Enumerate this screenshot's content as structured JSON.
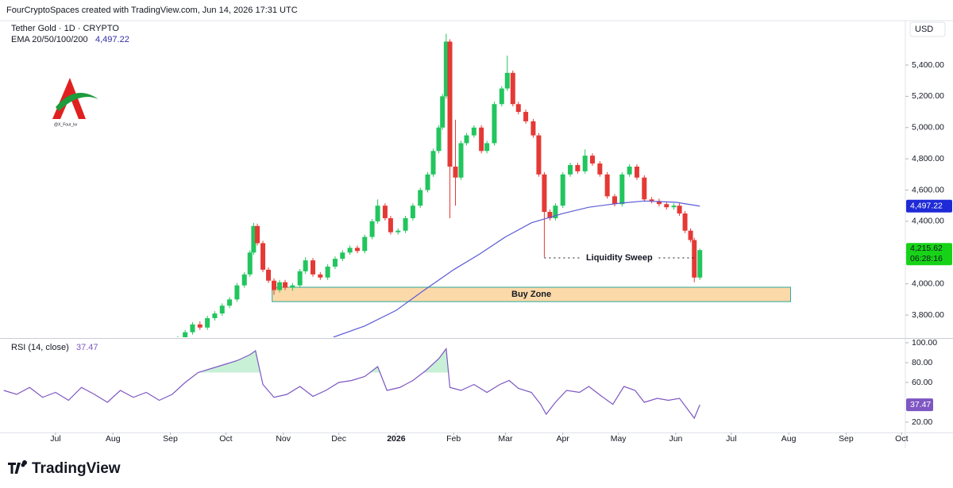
{
  "chart_data": {
    "type": "candlestick",
    "header": "FourCryptoSpaces created with TradingView.com, Jun 14, 2026 17:31 UTC",
    "title": "Tether Gold · 1D · CRYPTO",
    "currency": "USD",
    "brand": "TradingView",
    "logo_caption": "@X_Four_kv",
    "xlim": [
      "2025-06-01",
      "2026-10-03"
    ],
    "xticks": [
      {
        "value": "2025-07-01",
        "label": "Jul"
      },
      {
        "value": "2025-08-01",
        "label": "Aug"
      },
      {
        "value": "2025-09-01",
        "label": "Sep"
      },
      {
        "value": "2025-10-01",
        "label": "Oct"
      },
      {
        "value": "2025-11-01",
        "label": "Nov"
      },
      {
        "value": "2025-12-01",
        "label": "Dec"
      },
      {
        "value": "2026-01-01",
        "label": "2026"
      },
      {
        "value": "2026-02-01",
        "label": "Feb"
      },
      {
        "value": "2026-03-01",
        "label": "Mar"
      },
      {
        "value": "2026-04-01",
        "label": "Apr"
      },
      {
        "value": "2026-05-01",
        "label": "May"
      },
      {
        "value": "2026-06-01",
        "label": "Jun"
      },
      {
        "value": "2026-07-01",
        "label": "Jul"
      },
      {
        "value": "2026-08-01",
        "label": "Aug"
      },
      {
        "value": "2026-09-01",
        "label": "Sep"
      },
      {
        "value": "2026-10-01",
        "label": "Oct"
      }
    ],
    "ylim": [
      3658,
      5664
    ],
    "yticks": [
      {
        "value": 3800,
        "label": "3,800.00"
      },
      {
        "value": 4000,
        "label": "4,000.00"
      },
      {
        "value": 4200,
        "label": "4,200.00"
      },
      {
        "value": 4400,
        "label": "4,400.00"
      },
      {
        "value": 4600,
        "label": "4,600.00"
      },
      {
        "value": 4800,
        "label": "4,800.00"
      },
      {
        "value": 5000,
        "label": "5,000.00"
      },
      {
        "value": 5200,
        "label": "5,200.00"
      },
      {
        "value": 5400,
        "label": "5,400.00"
      }
    ],
    "up_color": "#22c55e",
    "down_color": "#e53935",
    "candles": {
      "x": [
        "2025-09-05",
        "2025-09-09",
        "2025-09-13",
        "2025-09-17",
        "2025-09-21",
        "2025-09-25",
        "2025-09-29",
        "2025-10-03",
        "2025-10-07",
        "2025-10-11",
        "2025-10-14",
        "2025-10-16",
        "2025-10-18",
        "2025-10-21",
        "2025-10-24",
        "2025-10-27",
        "2025-10-30",
        "2025-11-02",
        "2025-11-06",
        "2025-11-10",
        "2025-11-13",
        "2025-11-17",
        "2025-11-21",
        "2025-11-25",
        "2025-11-29",
        "2025-12-03",
        "2025-12-07",
        "2025-12-11",
        "2025-12-15",
        "2025-12-19",
        "2025-12-22",
        "2025-12-26",
        "2025-12-29",
        "2026-01-02",
        "2026-01-06",
        "2026-01-10",
        "2026-01-14",
        "2026-01-18",
        "2026-01-21",
        "2026-01-24",
        "2026-01-26",
        "2026-01-28",
        "2026-01-30",
        "2026-02-02",
        "2026-02-05",
        "2026-02-08",
        "2026-02-12",
        "2026-02-16",
        "2026-02-19",
        "2026-02-23",
        "2026-02-27",
        "2026-03-02",
        "2026-03-05",
        "2026-03-08",
        "2026-03-12",
        "2026-03-16",
        "2026-03-19",
        "2026-03-22",
        "2026-03-25",
        "2026-03-28",
        "2026-04-01",
        "2026-04-05",
        "2026-04-09",
        "2026-04-13",
        "2026-04-17",
        "2026-04-21",
        "2026-04-25",
        "2026-04-29",
        "2026-05-03",
        "2026-05-07",
        "2026-05-11",
        "2026-05-15",
        "2026-05-19",
        "2026-05-23",
        "2026-05-27",
        "2026-05-31",
        "2026-06-03",
        "2026-06-06",
        "2026-06-09",
        "2026-06-11",
        "2026-06-14"
      ],
      "open": [
        3630,
        3650,
        3690,
        3740,
        3720,
        3780,
        3810,
        3860,
        3900,
        3990,
        4060,
        4200,
        4370,
        4260,
        4090,
        4020,
        3960,
        4010,
        3975,
        3990,
        4080,
        4150,
        4060,
        4040,
        4110,
        4160,
        4200,
        4230,
        4210,
        4300,
        4400,
        4500,
        4420,
        4330,
        4340,
        4420,
        4500,
        4600,
        4700,
        4850,
        5000,
        5200,
        5550,
        4750,
        4680,
        4900,
        4950,
        5000,
        4850,
        4900,
        5150,
        5250,
        5350,
        5150,
        5100,
        5040,
        4950,
        4700,
        4460,
        4420,
        4500,
        4700,
        4760,
        4720,
        4820,
        4770,
        4700,
        4560,
        4510,
        4700,
        4750,
        4680,
        4540,
        4530,
        4510,
        4490,
        4500,
        4450,
        4340,
        4280,
        4040
      ],
      "high": [
        3665,
        3705,
        3755,
        3760,
        3795,
        3825,
        3875,
        3915,
        4005,
        4075,
        4215,
        4390,
        4385,
        4275,
        4105,
        4035,
        4025,
        4025,
        4005,
        4095,
        4170,
        4165,
        4075,
        4125,
        4175,
        4215,
        4245,
        4245,
        4315,
        4415,
        4540,
        4515,
        4435,
        4355,
        4435,
        4515,
        4615,
        4715,
        4865,
        5015,
        5215,
        5600,
        5565,
        5050,
        4915,
        4965,
        5015,
        5015,
        4915,
        5165,
        5265,
        5460,
        5365,
        5165,
        5115,
        5055,
        4965,
        4715,
        4475,
        4515,
        4715,
        4775,
        4775,
        4860,
        4835,
        4785,
        4715,
        4575,
        4715,
        4765,
        4765,
        4695,
        4555,
        4545,
        4525,
        4515,
        4515,
        4465,
        4355,
        4295,
        4225
      ],
      "low": [
        3615,
        3635,
        3675,
        3705,
        3705,
        3765,
        3795,
        3845,
        3885,
        3975,
        4045,
        4185,
        4245,
        4075,
        4005,
        3930,
        3945,
        3960,
        3955,
        3975,
        4065,
        4045,
        4025,
        4025,
        4095,
        4145,
        4185,
        4195,
        4195,
        4285,
        4385,
        4405,
        4315,
        4315,
        4325,
        4405,
        4485,
        4585,
        4685,
        4835,
        4985,
        5185,
        4420,
        4500,
        4665,
        4885,
        4935,
        4835,
        4835,
        4885,
        5135,
        5235,
        5135,
        5085,
        5025,
        4935,
        4685,
        4170,
        4405,
        4405,
        4485,
        4685,
        4705,
        4705,
        4755,
        4685,
        4545,
        4495,
        4495,
        4685,
        4665,
        4525,
        4515,
        4495,
        4475,
        4475,
        4435,
        4325,
        4265,
        4010,
        4025
      ],
      "close": [
        3650,
        3690,
        3740,
        3720,
        3780,
        3810,
        3860,
        3900,
        3990,
        4060,
        4200,
        4370,
        4260,
        4090,
        4020,
        3960,
        4010,
        3975,
        3990,
        4080,
        4150,
        4060,
        4040,
        4110,
        4160,
        4200,
        4230,
        4210,
        4300,
        4400,
        4500,
        4420,
        4330,
        4340,
        4420,
        4500,
        4600,
        4700,
        4850,
        5000,
        5200,
        5550,
        4750,
        4680,
        4900,
        4950,
        5000,
        4850,
        4900,
        5150,
        5250,
        5350,
        5150,
        5100,
        5040,
        4950,
        4700,
        4460,
        4420,
        4500,
        4700,
        4760,
        4720,
        4820,
        4770,
        4700,
        4560,
        4510,
        4700,
        4750,
        4680,
        4540,
        4530,
        4510,
        4490,
        4500,
        4450,
        4340,
        4280,
        4040,
        4215.62
      ],
      "last_close_label": "4,215.62",
      "countdown": "06:28:16"
    },
    "ema": {
      "name": "EMA 20/50/100/200",
      "color": "#5b5bd6",
      "x": [
        "2025-11-28",
        "2025-12-15",
        "2026-01-01",
        "2026-01-15",
        "2026-02-01",
        "2026-02-15",
        "2026-03-01",
        "2026-03-15",
        "2026-04-01",
        "2026-04-15",
        "2026-05-01",
        "2026-05-15",
        "2026-06-01",
        "2026-06-14"
      ],
      "values": [
        3658,
        3730,
        3830,
        3950,
        4090,
        4190,
        4300,
        4390,
        4450,
        4490,
        4515,
        4530,
        4522,
        4497.22
      ],
      "last_value_label": "4,497.22"
    },
    "annotations": [
      {
        "label": "Buy Zone",
        "x": [
          "2025-10-26",
          "2026-08-02"
        ],
        "y": [
          3886,
          3978
        ],
        "color": "#fcd9a8",
        "border": "#2aa89a"
      },
      {
        "label": "Liquidity Sweep",
        "x": [
          "2026-03-22",
          "2026-06-11"
        ],
        "y": 4166
      }
    ],
    "rsi": {
      "name": "RSI (14, close)",
      "color": "#7e57c2",
      "ylim": [
        9.6,
        103.2
      ],
      "yticks": [
        {
          "value": 20,
          "label": "20.00"
        },
        {
          "value": 60,
          "label": "60.00"
        },
        {
          "value": 80,
          "label": "80.00"
        },
        {
          "value": 100,
          "label": "100.00"
        }
      ],
      "overbought": 70,
      "x": [
        "2025-06-03",
        "2025-06-10",
        "2025-06-17",
        "2025-06-24",
        "2025-07-01",
        "2025-07-08",
        "2025-07-15",
        "2025-07-22",
        "2025-07-29",
        "2025-08-05",
        "2025-08-12",
        "2025-08-19",
        "2025-08-26",
        "2025-09-02",
        "2025-09-09",
        "2025-09-16",
        "2025-09-23",
        "2025-09-30",
        "2025-10-07",
        "2025-10-14",
        "2025-10-17",
        "2025-10-21",
        "2025-10-27",
        "2025-11-03",
        "2025-11-10",
        "2025-11-17",
        "2025-11-24",
        "2025-12-01",
        "2025-12-08",
        "2025-12-15",
        "2025-12-22",
        "2025-12-27",
        "2026-01-03",
        "2026-01-10",
        "2026-01-17",
        "2026-01-24",
        "2026-01-28",
        "2026-01-30",
        "2026-02-05",
        "2026-02-12",
        "2026-02-19",
        "2026-02-26",
        "2026-03-03",
        "2026-03-08",
        "2026-03-15",
        "2026-03-20",
        "2026-03-23",
        "2026-03-28",
        "2026-04-03",
        "2026-04-10",
        "2026-04-15",
        "2026-04-22",
        "2026-04-28",
        "2026-05-04",
        "2026-05-10",
        "2026-05-15",
        "2026-05-22",
        "2026-05-28",
        "2026-06-03",
        "2026-06-07",
        "2026-06-11",
        "2026-06-14"
      ],
      "values": [
        52,
        48,
        55,
        45,
        50,
        42,
        55,
        48,
        40,
        52,
        45,
        50,
        42,
        48,
        60,
        70,
        74,
        78,
        82,
        88,
        92,
        58,
        45,
        48,
        56,
        46,
        52,
        60,
        62,
        66,
        76,
        52,
        55,
        62,
        72,
        84,
        94,
        55,
        52,
        58,
        50,
        58,
        62,
        54,
        50,
        38,
        28,
        40,
        52,
        50,
        56,
        46,
        38,
        56,
        52,
        40,
        44,
        42,
        44,
        34,
        24,
        37.47
      ]
    }
  }
}
